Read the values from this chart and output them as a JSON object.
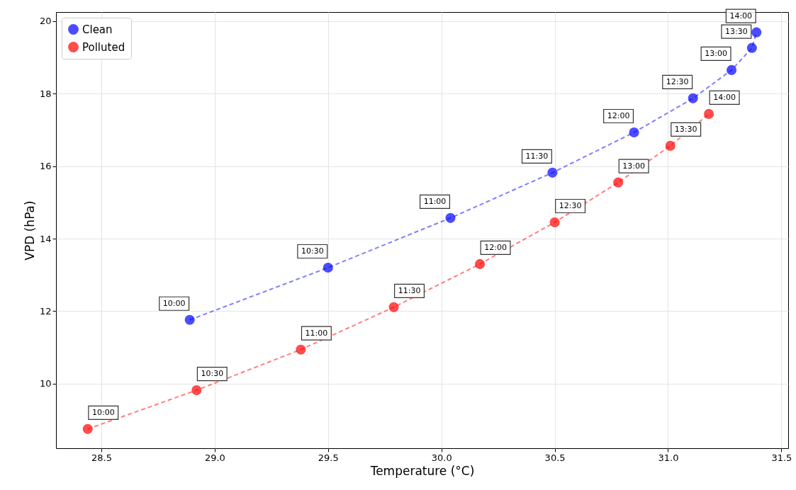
{
  "chart_data": {
    "type": "line",
    "xlabel": "Temperature (°C)",
    "ylabel": "VPD (hPa)",
    "xlim": [
      28.3,
      31.53
    ],
    "ylim": [
      8.22,
      20.25
    ],
    "xticks": [
      28.5,
      {
        "value": 29,
        "label": "29.0"
      },
      29.5,
      {
        "value": 30,
        "label": "30.0"
      },
      30.5,
      {
        "value": 31,
        "label": "31.0"
      },
      31.5
    ],
    "yticks": [
      10,
      12,
      14,
      16,
      18,
      20
    ],
    "grid": true,
    "legend": "top left",
    "marker": "circle",
    "line_style": "dashed",
    "series": [
      {
        "name": "Clean",
        "color": "#0000ff",
        "x": [
          28.89,
          29.5,
          30.04,
          30.49,
          30.85,
          31.11,
          31.28,
          31.37,
          31.39
        ],
        "values": [
          11.76,
          13.2,
          14.57,
          15.82,
          16.93,
          17.87,
          18.65,
          19.26,
          19.69
        ]
      },
      {
        "name": "Polluted",
        "color": "#ff0000",
        "x": [
          28.44,
          28.92,
          29.38,
          29.79,
          30.17,
          30.5,
          30.78,
          31.01,
          31.18
        ],
        "values": [
          8.75,
          9.82,
          10.94,
          12.11,
          13.3,
          14.45,
          15.55,
          16.56,
          17.44
        ]
      }
    ],
    "annotations": [
      {
        "text": "10:00",
        "x": 28.89,
        "y": 11.76
      },
      {
        "text": "10:30",
        "x": 29.5,
        "y": 13.2
      },
      {
        "text": "11:00",
        "x": 30.04,
        "y": 14.57
      },
      {
        "text": "11:30",
        "x": 30.49,
        "y": 15.82
      },
      {
        "text": "12:00",
        "x": 30.85,
        "y": 16.93
      },
      {
        "text": "12:30",
        "x": 31.11,
        "y": 17.87
      },
      {
        "text": "13:00",
        "x": 31.28,
        "y": 18.65
      },
      {
        "text": "13:30",
        "x": 31.37,
        "y": 19.26
      },
      {
        "text": "14:00",
        "x": 31.39,
        "y": 19.69
      },
      {
        "text": "10:00",
        "x": 28.44,
        "y": 8.75
      },
      {
        "text": "10:30",
        "x": 28.92,
        "y": 9.82
      },
      {
        "text": "11:00",
        "x": 29.38,
        "y": 10.94
      },
      {
        "text": "11:30",
        "x": 29.79,
        "y": 12.11
      },
      {
        "text": "12:00",
        "x": 30.17,
        "y": 13.3
      },
      {
        "text": "12:30",
        "x": 30.5,
        "y": 14.45
      },
      {
        "text": "13:00",
        "x": 30.78,
        "y": 15.55
      },
      {
        "text": "13:30",
        "x": 31.01,
        "y": 16.56
      },
      {
        "text": "14:00",
        "x": 31.18,
        "y": 17.44
      }
    ]
  }
}
